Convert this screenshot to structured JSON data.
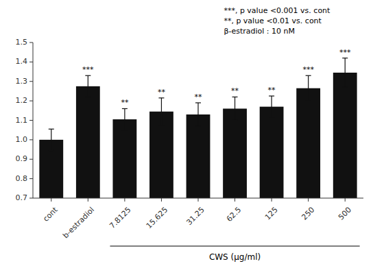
{
  "chart_data": {
    "type": "bar",
    "categories": [
      "cont",
      "b-estradiol",
      "7.8125",
      "15.625",
      "31.25",
      "62.5",
      "125",
      "250",
      "500"
    ],
    "values": [
      1.0,
      1.275,
      1.105,
      1.145,
      1.13,
      1.16,
      1.17,
      1.265,
      1.345
    ],
    "errors": [
      0.055,
      0.055,
      0.055,
      0.07,
      0.06,
      0.06,
      0.055,
      0.065,
      0.075
    ],
    "significance": [
      null,
      "***",
      "**",
      "**",
      "**",
      "**",
      "**",
      "***",
      "***"
    ],
    "color": "#111111",
    "ylim": [
      0.7,
      1.5
    ],
    "yticks": [
      0.7,
      0.8,
      0.9,
      {
        "value": 1.0,
        "label": "1.0"
      },
      1.1,
      1.2,
      1.3,
      1.4,
      1.5
    ],
    "xlabel": "CWS (μg/ml)",
    "annotations": [
      "***, p value <0.001 vs. cont",
      "**, p value <0.01 vs. cont",
      "β-estradiol : 10 nM"
    ],
    "grid": false
  }
}
